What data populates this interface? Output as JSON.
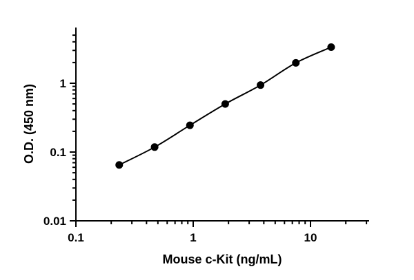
{
  "chart_data": {
    "type": "scatter",
    "xlabel": "Mouse c-Kit (ng/mL)",
    "ylabel": "O.D. (450 nm)",
    "x_scale": "log",
    "y_scale": "log",
    "xlim": [
      0.1,
      30
    ],
    "ylim": [
      0.01,
      5
    ],
    "x_ticks": [
      {
        "value": 0.1,
        "label": "0.1"
      },
      {
        "value": 1,
        "label": "1"
      },
      {
        "value": 10,
        "label": "10"
      }
    ],
    "y_ticks": [
      {
        "value": 0.01,
        "label": "0.01"
      },
      {
        "value": 0.1,
        "label": "0.1"
      },
      {
        "value": 1,
        "label": "1"
      }
    ],
    "grid": false,
    "marker_color": "#000000",
    "series": [
      {
        "x": [
          0.234,
          0.469,
          0.938,
          1.875,
          3.75,
          7.5,
          15
        ],
        "y": [
          0.065,
          0.118,
          0.245,
          0.5,
          0.94,
          1.98,
          3.35
        ]
      }
    ],
    "fit_curve": true
  }
}
